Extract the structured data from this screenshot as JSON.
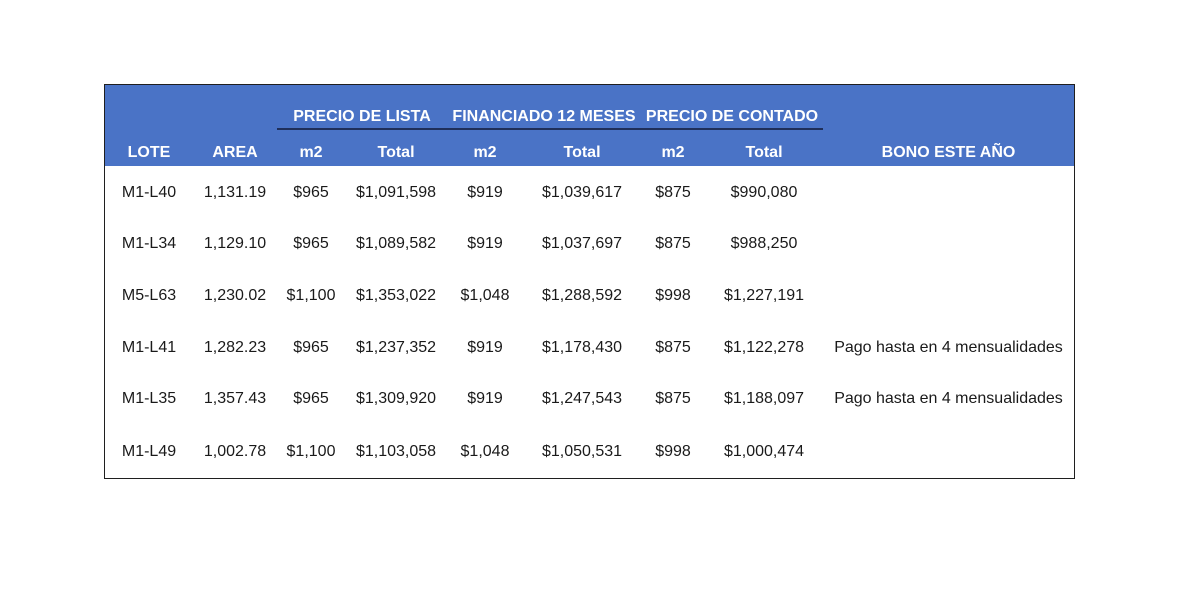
{
  "table": {
    "group_headers": {
      "precio_lista": "PRECIO DE LISTA",
      "financiado": "FINANCIADO 12 MESES",
      "contado": "PRECIO DE CONTADO"
    },
    "columns": {
      "lote": "LOTE",
      "area": "AREA",
      "lista_m2": "m2",
      "lista_total": "Total",
      "fin_m2": "m2",
      "fin_total": "Total",
      "contado_m2": "m2",
      "contado_total": "Total",
      "bono": "BONO ESTE AÑO"
    },
    "rows": [
      {
        "lote": "M1-L40",
        "area": "1,131.19",
        "lista_m2": "$965",
        "lista_total": "$1,091,598",
        "fin_m2": "$919",
        "fin_total": "$1,039,617",
        "contado_m2": "$875",
        "contado_total": "$990,080",
        "bono": ""
      },
      {
        "lote": "M1-L34",
        "area": "1,129.10",
        "lista_m2": "$965",
        "lista_total": "$1,089,582",
        "fin_m2": "$919",
        "fin_total": "$1,037,697",
        "contado_m2": "$875",
        "contado_total": "$988,250",
        "bono": ""
      },
      {
        "lote": "M5-L63",
        "area": "1,230.02",
        "lista_m2": "$1,100",
        "lista_total": "$1,353,022",
        "fin_m2": "$1,048",
        "fin_total": "$1,288,592",
        "contado_m2": "$998",
        "contado_total": "$1,227,191",
        "bono": ""
      },
      {
        "lote": "M1-L41",
        "area": "1,282.23",
        "lista_m2": "$965",
        "lista_total": "$1,237,352",
        "fin_m2": "$919",
        "fin_total": "$1,178,430",
        "contado_m2": "$875",
        "contado_total": "$1,122,278",
        "bono": "Pago hasta en 4 mensualidades"
      },
      {
        "lote": "M1-L35",
        "area": "1,357.43",
        "lista_m2": "$965",
        "lista_total": "$1,309,920",
        "fin_m2": "$919",
        "fin_total": "$1,247,543",
        "contado_m2": "$875",
        "contado_total": "$1,188,097",
        "bono": "Pago hasta en 4 mensualidades"
      },
      {
        "lote": "M1-L49",
        "area": "1,002.78",
        "lista_m2": "$1,100",
        "lista_total": "$1,103,058",
        "fin_m2": "$1,048",
        "fin_total": "$1,050,531",
        "contado_m2": "$998",
        "contado_total": "$1,000,474",
        "bono": ""
      }
    ]
  },
  "colors": {
    "header_bg": "#4a73c6",
    "header_text": "#ffffff",
    "border": "#1f1f1f"
  }
}
